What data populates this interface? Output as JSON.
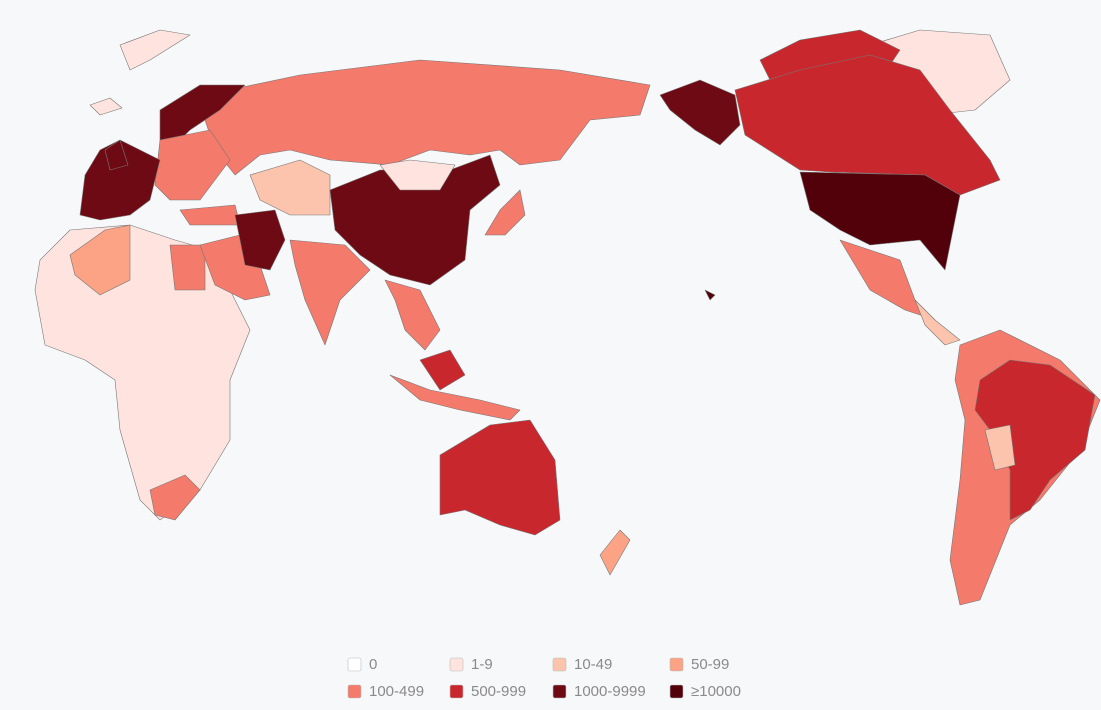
{
  "legend": [
    {
      "label": "0",
      "color": "#ffffff"
    },
    {
      "label": "1-9",
      "color": "#fee3de"
    },
    {
      "label": "10-49",
      "color": "#fcc3ad"
    },
    {
      "label": "50-99",
      "color": "#fba384"
    },
    {
      "label": "100-499",
      "color": "#f47a6b"
    },
    {
      "label": "500-999",
      "color": "#c8282d"
    },
    {
      "label": "1000-9999",
      "color": "#6e0a13"
    },
    {
      "label": "≥10000",
      "color": "#52000a"
    }
  ]
}
